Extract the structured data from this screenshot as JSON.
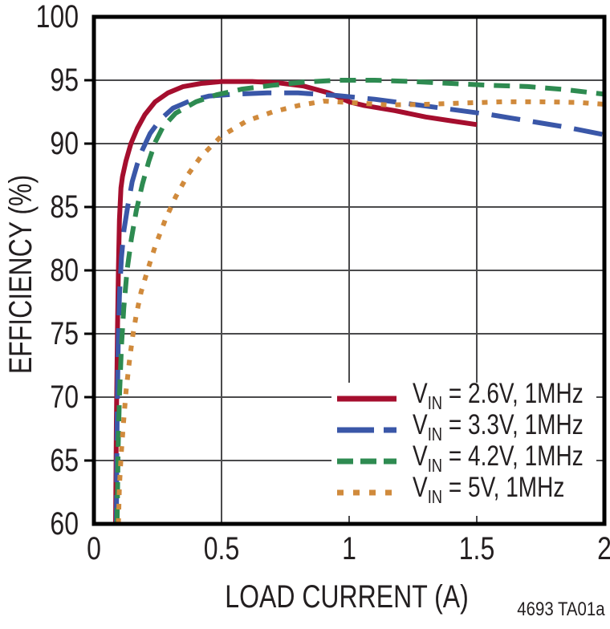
{
  "figure": {
    "footnote": "4693 TA01a"
  },
  "chart_data": {
    "type": "line",
    "title": "",
    "xlabel": "LOAD CURRENT (A)",
    "ylabel": "EFFICIENCY (%)",
    "xlim": [
      0,
      2
    ],
    "ylim": [
      60,
      100
    ],
    "xticks": [
      0,
      0.5,
      1,
      1.5,
      2
    ],
    "xtick_labels": [
      "0",
      "0.5",
      "1",
      "1.5",
      "2"
    ],
    "yticks": [
      60,
      65,
      70,
      75,
      80,
      85,
      90,
      95,
      100
    ],
    "grid": true,
    "grid_x": [
      0.5,
      1,
      1.5
    ],
    "grid_y": [
      65,
      70,
      75,
      80,
      85,
      90,
      95
    ],
    "legend_position": "bottom-right",
    "axis_color": "#000000",
    "grid_color": "#4a4a4c",
    "text_color": "#231f20",
    "series": [
      {
        "id": "vin-2v6-1mhz",
        "label": "VIN = 2.6V, 1MHz",
        "label_prefix": "V",
        "label_sub": "IN",
        "label_rest": " = 2.6V, 1MHz",
        "color": "#a50e2e",
        "dash": "",
        "legend_dash": "",
        "points": [
          [
            0.085,
            60
          ],
          [
            0.088,
            68
          ],
          [
            0.092,
            75
          ],
          [
            0.096,
            80
          ],
          [
            0.1,
            84
          ],
          [
            0.106,
            86.5
          ],
          [
            0.112,
            87.4
          ],
          [
            0.125,
            88.6
          ],
          [
            0.145,
            90
          ],
          [
            0.17,
            91.2
          ],
          [
            0.2,
            92.3
          ],
          [
            0.24,
            93.3
          ],
          [
            0.29,
            94.0
          ],
          [
            0.35,
            94.5
          ],
          [
            0.42,
            94.75
          ],
          [
            0.5,
            94.9
          ],
          [
            0.62,
            94.9
          ],
          [
            0.72,
            94.8
          ],
          [
            0.82,
            94.55
          ],
          [
            0.92,
            94.0
          ],
          [
            1.0,
            93.3
          ],
          [
            1.06,
            93.0
          ],
          [
            1.18,
            92.6
          ],
          [
            1.3,
            92.1
          ],
          [
            1.4,
            91.8
          ],
          [
            1.5,
            91.5
          ]
        ]
      },
      {
        "id": "vin-3v3-1mhz",
        "label": "VIN = 3.3V, 1MHz",
        "label_prefix": "V",
        "label_sub": "IN",
        "label_rest": " = 3.3V, 1MHz",
        "color": "#3a57a8",
        "dash": "36 16",
        "legend_dash": "46 12",
        "points": [
          [
            0.088,
            60
          ],
          [
            0.091,
            68
          ],
          [
            0.095,
            74
          ],
          [
            0.1,
            78
          ],
          [
            0.108,
            81
          ],
          [
            0.118,
            83.2
          ],
          [
            0.132,
            85
          ],
          [
            0.15,
            87
          ],
          [
            0.17,
            88.4
          ],
          [
            0.19,
            89.5
          ],
          [
            0.22,
            90.8
          ],
          [
            0.26,
            91.9
          ],
          [
            0.31,
            92.8
          ],
          [
            0.38,
            93.4
          ],
          [
            0.45,
            93.75
          ],
          [
            0.55,
            93.9
          ],
          [
            0.68,
            94.0
          ],
          [
            0.8,
            94.0
          ],
          [
            0.95,
            93.8
          ],
          [
            1.1,
            93.5
          ],
          [
            1.25,
            93.1
          ],
          [
            1.4,
            92.7
          ],
          [
            1.55,
            92.3
          ],
          [
            1.7,
            91.8
          ],
          [
            1.85,
            91.3
          ],
          [
            2.0,
            90.7
          ]
        ]
      },
      {
        "id": "vin-4v2-1mhz",
        "label": "VIN = 4.2V, 1MHz",
        "label_prefix": "V",
        "label_sub": "IN",
        "label_rest": " = 4.2V, 1MHz",
        "color": "#2e8b51",
        "dash": "20 12",
        "legend_dash": "20 9",
        "points": [
          [
            0.091,
            60
          ],
          [
            0.095,
            66
          ],
          [
            0.1,
            70
          ],
          [
            0.108,
            74
          ],
          [
            0.117,
            77
          ],
          [
            0.13,
            80
          ],
          [
            0.147,
            82.5
          ],
          [
            0.166,
            84.7
          ],
          [
            0.19,
            86.8
          ],
          [
            0.215,
            88.6
          ],
          [
            0.24,
            90.1
          ],
          [
            0.27,
            91.3
          ],
          [
            0.32,
            92.4
          ],
          [
            0.4,
            93.3
          ],
          [
            0.48,
            93.85
          ],
          [
            0.58,
            94.3
          ],
          [
            0.7,
            94.6
          ],
          [
            0.82,
            94.85
          ],
          [
            0.95,
            95.0
          ],
          [
            1.1,
            95.0
          ],
          [
            1.25,
            94.9
          ],
          [
            1.4,
            94.75
          ],
          [
            1.55,
            94.6
          ],
          [
            1.7,
            94.5
          ],
          [
            1.85,
            94.25
          ],
          [
            2.0,
            93.9
          ]
        ]
      },
      {
        "id": "vin-5v-1mhz",
        "label": "VIN = 5V, 1MHz",
        "label_prefix": "V",
        "label_sub": "IN",
        "label_rest": " = 5V, 1MHz",
        "color": "#d08a3c",
        "dash": "7 11",
        "legend_dash": "8 12",
        "points": [
          [
            0.096,
            60
          ],
          [
            0.1,
            63
          ],
          [
            0.107,
            65.5
          ],
          [
            0.116,
            68
          ],
          [
            0.126,
            70.5
          ],
          [
            0.14,
            73
          ],
          [
            0.152,
            74.8
          ],
          [
            0.166,
            76.5
          ],
          [
            0.185,
            78.3
          ],
          [
            0.21,
            80
          ],
          [
            0.24,
            81.9
          ],
          [
            0.28,
            84
          ],
          [
            0.32,
            85.8
          ],
          [
            0.37,
            87.6
          ],
          [
            0.42,
            89
          ],
          [
            0.5,
            90.6
          ],
          [
            0.6,
            91.8
          ],
          [
            0.7,
            92.5
          ],
          [
            0.8,
            93.0
          ],
          [
            0.9,
            93.35
          ],
          [
            1.0,
            93.25
          ],
          [
            1.15,
            93.05
          ],
          [
            1.3,
            93.1
          ],
          [
            1.45,
            93.2
          ],
          [
            1.6,
            93.3
          ],
          [
            1.75,
            93.3
          ],
          [
            1.9,
            93.25
          ],
          [
            2.0,
            93.1
          ]
        ]
      }
    ]
  }
}
